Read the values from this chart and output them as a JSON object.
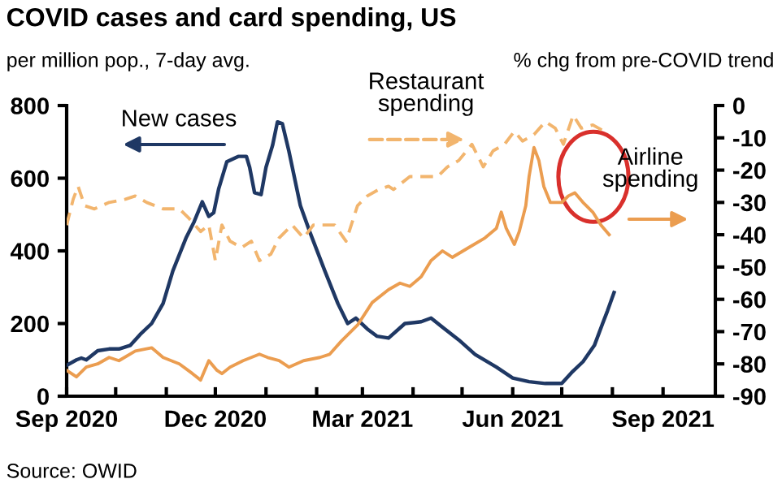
{
  "chart_data": {
    "type": "line",
    "title": "COVID cases and card spending, US",
    "ylabel": "per million pop., 7-day avg.",
    "y2label": "% chg from pre-COVID trend",
    "annotations": [
      "Source: OWID"
    ],
    "series": [
      {
        "name": "New cases",
        "color": "#1f3864",
        "x": [
          "2020-09-01",
          "2020-09-07",
          "2020-09-10",
          "2020-09-13",
          "2020-09-20",
          "2020-09-27",
          "2020-10-03",
          "2020-10-10",
          "2020-10-16",
          "2020-10-23",
          "2020-10-30",
          "2020-11-05",
          "2020-11-13",
          "2020-11-18",
          "2020-11-23",
          "2020-11-27",
          "2020-11-30",
          "2020-12-03",
          "2020-12-08",
          "2020-12-15",
          "2020-12-20",
          "2020-12-22",
          "2020-12-25",
          "2020-12-29",
          "2021-01-01",
          "2021-01-05",
          "2021-01-08",
          "2021-01-11",
          "2021-01-15",
          "2021-01-22",
          "2021-01-28",
          "2021-02-06",
          "2021-02-14",
          "2021-02-20",
          "2021-02-25",
          "2021-03-04",
          "2021-03-10",
          "2021-03-17",
          "2021-03-27",
          "2021-04-06",
          "2021-04-12",
          "2021-04-19",
          "2021-04-29",
          "2021-05-09",
          "2021-05-22",
          "2021-06-01",
          "2021-06-11",
          "2021-06-21",
          "2021-07-01",
          "2021-07-07",
          "2021-07-14",
          "2021-07-21",
          "2021-07-26",
          "2021-07-29",
          "2021-08-02"
        ],
        "values": [
          85,
          100,
          105,
          100,
          125,
          130,
          130,
          140,
          170,
          200,
          255,
          345,
          435,
          480,
          535,
          495,
          505,
          570,
          645,
          660,
          660,
          630,
          560,
          555,
          630,
          690,
          755,
          750,
          675,
          525,
          450,
          345,
          255,
          200,
          215,
          185,
          165,
          160,
          200,
          205,
          215,
          190,
          155,
          115,
          80,
          50,
          40,
          35,
          35,
          65,
          95,
          140,
          200,
          235,
          285
        ]
      },
      {
        "name": "Restaurant spending",
        "color": "#f2b56e",
        "axis": "y2",
        "line_style": "dashed",
        "x": [
          "2020-09-01",
          "2020-09-05",
          "2020-09-08",
          "2020-09-12",
          "2020-09-18",
          "2020-09-27",
          "2020-10-07",
          "2020-10-13",
          "2020-10-20",
          "2020-10-30",
          "2020-11-09",
          "2020-11-15",
          "2020-11-22",
          "2020-11-27",
          "2020-12-01",
          "2020-12-05",
          "2020-12-10",
          "2020-12-17",
          "2020-12-23",
          "2020-12-28",
          "2021-01-04",
          "2021-01-09",
          "2021-01-17",
          "2021-01-24",
          "2021-01-30",
          "2021-02-06",
          "2021-02-12",
          "2021-02-19",
          "2021-02-26",
          "2021-03-04",
          "2021-03-11",
          "2021-03-17",
          "2021-03-20",
          "2021-03-30",
          "2021-04-06",
          "2021-04-16",
          "2021-04-22",
          "2021-04-29",
          "2021-05-07",
          "2021-05-14",
          "2021-05-20",
          "2021-05-27",
          "2021-06-02",
          "2021-06-07",
          "2021-06-14",
          "2021-06-21",
          "2021-06-27",
          "2021-07-02",
          "2021-07-08",
          "2021-07-13",
          "2021-07-20",
          "2021-07-27",
          "2021-07-30"
        ],
        "values": [
          -37,
          -29,
          -25,
          -31,
          -32,
          -30,
          -29,
          -28,
          -30,
          -32,
          -32,
          -35,
          -39,
          -37,
          -48,
          -37,
          -42,
          -44,
          -42,
          -48,
          -46,
          -41,
          -37,
          -41,
          -37,
          -37,
          -37,
          -42,
          -31,
          -28,
          -26,
          -25,
          -26,
          -22,
          -22,
          -22,
          -19,
          -17,
          -12,
          -19,
          -14,
          -12,
          -8,
          -11,
          -9,
          -5,
          -7,
          -12,
          -3,
          -7,
          -6,
          -8,
          -8
        ]
      },
      {
        "name": "Airline spending",
        "color": "#eb9d50",
        "axis": "y2",
        "line_style": "solid",
        "x": [
          "2020-09-01",
          "2020-09-07",
          "2020-09-13",
          "2020-09-20",
          "2020-09-27",
          "2020-10-03",
          "2020-10-13",
          "2020-10-23",
          "2020-10-30",
          "2020-11-09",
          "2020-11-17",
          "2020-11-22",
          "2020-11-27",
          "2020-12-02",
          "2020-12-05",
          "2020-12-10",
          "2020-12-18",
          "2020-12-28",
          "2021-01-02",
          "2021-01-09",
          "2021-01-15",
          "2021-01-24",
          "2021-02-03",
          "2021-02-09",
          "2021-02-16",
          "2021-02-26",
          "2021-03-07",
          "2021-03-17",
          "2021-03-24",
          "2021-03-30",
          "2021-04-06",
          "2021-04-12",
          "2021-04-19",
          "2021-04-25",
          "2021-05-05",
          "2021-05-15",
          "2021-05-22",
          "2021-05-25",
          "2021-05-28",
          "2021-06-02",
          "2021-06-05",
          "2021-06-09",
          "2021-06-11",
          "2021-06-14",
          "2021-06-17",
          "2021-06-20",
          "2021-06-24",
          "2021-07-01",
          "2021-07-05",
          "2021-07-09",
          "2021-07-14",
          "2021-07-20",
          "2021-07-25",
          "2021-07-30"
        ],
        "values": [
          -82,
          -84,
          -81,
          -80,
          -78,
          -79,
          -76,
          -75,
          -78,
          -80,
          -83,
          -85,
          -79,
          -82,
          -83,
          -81,
          -79,
          -77,
          -78,
          -79,
          -81,
          -79,
          -78,
          -77,
          -73,
          -68,
          -61,
          -57,
          -55,
          -56,
          -53,
          -48,
          -45,
          -47,
          -44,
          -41,
          -38,
          -33,
          -38,
          -43,
          -39,
          -31,
          -22,
          -13,
          -17,
          -25,
          -30,
          -30,
          -28,
          -27,
          -30,
          -33,
          -37,
          -40
        ]
      }
    ],
    "xlim": [
      "2020-09-01",
      "2021-10-03"
    ],
    "xticks": [
      {
        "value": "2020-09-01",
        "label": "Sep 2020"
      },
      {
        "value": "2020-10-01",
        "label": null
      },
      {
        "value": "2020-11-01",
        "label": null
      },
      {
        "value": "2020-12-01",
        "label": "Dec 2020"
      },
      {
        "value": "2021-01-01",
        "label": null
      },
      {
        "value": "2021-02-01",
        "label": null
      },
      {
        "value": "2021-03-01",
        "label": "Mar 2021"
      },
      {
        "value": "2021-04-01",
        "label": null
      },
      {
        "value": "2021-05-01",
        "label": null
      },
      {
        "value": "2021-06-01",
        "label": "Jun 2021"
      },
      {
        "value": "2021-07-01",
        "label": null
      },
      {
        "value": "2021-08-01",
        "label": null
      },
      {
        "value": "2021-09-01",
        "label": "Sep 2021"
      }
    ],
    "ylim": [
      0,
      800
    ],
    "yticks": [
      0,
      200,
      400,
      600,
      800
    ],
    "y2lim": [
      -90,
      0
    ],
    "y2ticks": [
      0,
      -10,
      -20,
      -30,
      -40,
      -50,
      -60,
      -70,
      -80,
      -90
    ],
    "grid": false,
    "legend": false,
    "marker": "none"
  }
}
